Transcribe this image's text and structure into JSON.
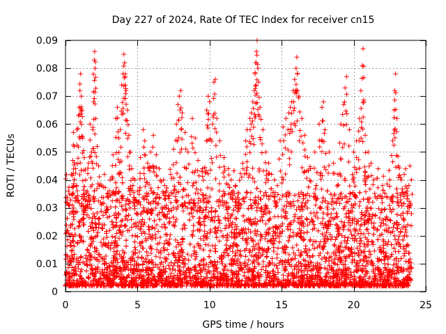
{
  "chart_data": {
    "type": "scatter",
    "title": "Day 227 of 2024, Rate Of TEC Index for receiver cn15",
    "xlabel": "GPS time / hours",
    "ylabel": "ROTI / TECUs",
    "xlim": [
      0,
      25
    ],
    "ylim": [
      0,
      0.09
    ],
    "xticks": [
      0,
      5,
      10,
      15,
      20,
      25
    ],
    "xtick_labels": [
      "0",
      "5",
      "10",
      "15",
      "20",
      "25"
    ],
    "yticks": [
      0,
      0.01,
      0.02,
      0.03,
      0.04,
      0.05,
      0.06,
      0.07,
      0.08,
      0.09
    ],
    "ytick_labels": [
      "0",
      "0.01",
      "0.02",
      "0.03",
      "0.04",
      "0.05",
      "0.06",
      "0.07",
      "0.08",
      "0.09"
    ],
    "grid": true,
    "marker": "+",
    "color": "#ff0000",
    "series": [
      {
        "name": "ROTI",
        "points": [
          [
            0.05,
            0.032
          ],
          [
            0.2,
            0.036
          ],
          [
            0.3,
            0.028
          ],
          [
            0.4,
            0.042
          ],
          [
            0.5,
            0.047
          ],
          [
            0.55,
            0.057
          ],
          [
            0.6,
            0.052
          ],
          [
            0.7,
            0.044
          ],
          [
            0.8,
            0.058
          ],
          [
            0.9,
            0.063
          ],
          [
            0.95,
            0.066
          ],
          [
            1.0,
            0.072
          ],
          [
            1.05,
            0.078
          ],
          [
            1.1,
            0.07
          ],
          [
            1.15,
            0.065
          ],
          [
            1.2,
            0.055
          ],
          [
            1.3,
            0.048
          ],
          [
            1.4,
            0.04
          ],
          [
            1.5,
            0.036
          ],
          [
            1.6,
            0.046
          ],
          [
            1.7,
            0.06
          ],
          [
            1.8,
            0.05
          ],
          [
            1.9,
            0.058
          ],
          [
            1.95,
            0.068
          ],
          [
            2.0,
            0.083
          ],
          [
            2.02,
            0.086
          ],
          [
            2.05,
            0.08
          ],
          [
            2.1,
            0.062
          ],
          [
            2.2,
            0.052
          ],
          [
            2.3,
            0.045
          ],
          [
            2.5,
            0.038
          ],
          [
            2.7,
            0.042
          ],
          [
            2.9,
            0.035
          ],
          [
            3.1,
            0.04
          ],
          [
            3.3,
            0.049
          ],
          [
            3.5,
            0.062
          ],
          [
            3.6,
            0.066
          ],
          [
            3.7,
            0.055
          ],
          [
            3.8,
            0.058
          ],
          [
            3.9,
            0.074
          ],
          [
            4.0,
            0.078
          ],
          [
            4.05,
            0.085
          ],
          [
            4.1,
            0.082
          ],
          [
            4.15,
            0.077
          ],
          [
            4.2,
            0.072
          ],
          [
            4.3,
            0.065
          ],
          [
            4.4,
            0.056
          ],
          [
            4.5,
            0.05
          ],
          [
            4.6,
            0.044
          ],
          [
            4.8,
            0.04
          ],
          [
            5.0,
            0.036
          ],
          [
            5.2,
            0.048
          ],
          [
            5.4,
            0.058
          ],
          [
            5.5,
            0.054
          ],
          [
            5.7,
            0.046
          ],
          [
            5.9,
            0.05
          ],
          [
            6.1,
            0.056
          ],
          [
            6.3,
            0.049
          ],
          [
            6.5,
            0.044
          ],
          [
            6.8,
            0.04
          ],
          [
            7.0,
            0.036
          ],
          [
            7.3,
            0.042
          ],
          [
            7.5,
            0.051
          ],
          [
            7.7,
            0.06
          ],
          [
            7.8,
            0.067
          ],
          [
            7.9,
            0.07
          ],
          [
            8.0,
            0.072
          ],
          [
            8.1,
            0.064
          ],
          [
            8.3,
            0.057
          ],
          [
            8.5,
            0.05
          ],
          [
            8.8,
            0.062
          ],
          [
            9.0,
            0.055
          ],
          [
            9.2,
            0.047
          ],
          [
            9.5,
            0.044
          ],
          [
            9.8,
            0.065
          ],
          [
            9.9,
            0.07
          ],
          [
            10.0,
            0.068
          ],
          [
            10.2,
            0.06
          ],
          [
            10.3,
            0.075
          ],
          [
            10.4,
            0.076
          ],
          [
            10.5,
            0.062
          ],
          [
            10.7,
            0.054
          ],
          [
            11.0,
            0.048
          ],
          [
            11.3,
            0.044
          ],
          [
            11.5,
            0.04
          ],
          [
            11.8,
            0.038
          ],
          [
            12.0,
            0.035
          ],
          [
            12.3,
            0.046
          ],
          [
            12.5,
            0.054
          ],
          [
            12.6,
            0.058
          ],
          [
            12.8,
            0.062
          ],
          [
            12.9,
            0.064
          ],
          [
            13.0,
            0.068
          ],
          [
            13.1,
            0.072
          ],
          [
            13.15,
            0.078
          ],
          [
            13.2,
            0.082
          ],
          [
            13.25,
            0.086
          ],
          [
            13.3,
            0.09
          ],
          [
            13.35,
            0.08
          ],
          [
            13.4,
            0.075
          ],
          [
            13.5,
            0.066
          ],
          [
            13.7,
            0.058
          ],
          [
            13.9,
            0.05
          ],
          [
            14.1,
            0.046
          ],
          [
            14.3,
            0.042
          ],
          [
            14.5,
            0.04
          ],
          [
            14.7,
            0.038
          ],
          [
            14.9,
            0.054
          ],
          [
            15.1,
            0.059
          ],
          [
            15.3,
            0.062
          ],
          [
            15.5,
            0.064
          ],
          [
            15.6,
            0.066
          ],
          [
            15.7,
            0.068
          ],
          [
            15.8,
            0.072
          ],
          [
            15.9,
            0.076
          ],
          [
            16.0,
            0.08
          ],
          [
            16.05,
            0.084
          ],
          [
            16.1,
            0.078
          ],
          [
            16.2,
            0.07
          ],
          [
            16.4,
            0.062
          ],
          [
            16.6,
            0.056
          ],
          [
            16.8,
            0.048
          ],
          [
            17.0,
            0.044
          ],
          [
            17.3,
            0.05
          ],
          [
            17.6,
            0.06
          ],
          [
            17.8,
            0.066
          ],
          [
            17.9,
            0.068
          ],
          [
            18.0,
            0.058
          ],
          [
            18.3,
            0.05
          ],
          [
            18.6,
            0.046
          ],
          [
            18.9,
            0.042
          ],
          [
            19.1,
            0.06
          ],
          [
            19.3,
            0.067
          ],
          [
            19.4,
            0.073
          ],
          [
            19.5,
            0.077
          ],
          [
            19.7,
            0.058
          ],
          [
            20.0,
            0.05
          ],
          [
            20.2,
            0.054
          ],
          [
            20.4,
            0.062
          ],
          [
            20.5,
            0.072
          ],
          [
            20.6,
            0.081
          ],
          [
            20.65,
            0.087
          ],
          [
            20.7,
            0.068
          ],
          [
            20.8,
            0.056
          ],
          [
            21.0,
            0.05
          ],
          [
            21.2,
            0.046
          ],
          [
            21.4,
            0.04
          ],
          [
            21.7,
            0.044
          ],
          [
            22.0,
            0.038
          ],
          [
            22.3,
            0.034
          ],
          [
            22.5,
            0.04
          ],
          [
            22.7,
            0.054
          ],
          [
            22.8,
            0.065
          ],
          [
            22.85,
            0.072
          ],
          [
            22.9,
            0.078
          ],
          [
            23.0,
            0.062
          ],
          [
            23.1,
            0.045
          ],
          [
            23.3,
            0.04
          ],
          [
            23.5,
            0.042
          ],
          [
            23.7,
            0.036
          ],
          [
            23.9,
            0.045
          ],
          [
            24.0,
            0.04
          ]
        ]
      }
    ],
    "dense_band": {
      "description": "dense cloud of ROTI values across 0-24 h",
      "x_range": [
        0,
        24
      ],
      "typical_range": [
        0.002,
        0.03
      ]
    }
  }
}
